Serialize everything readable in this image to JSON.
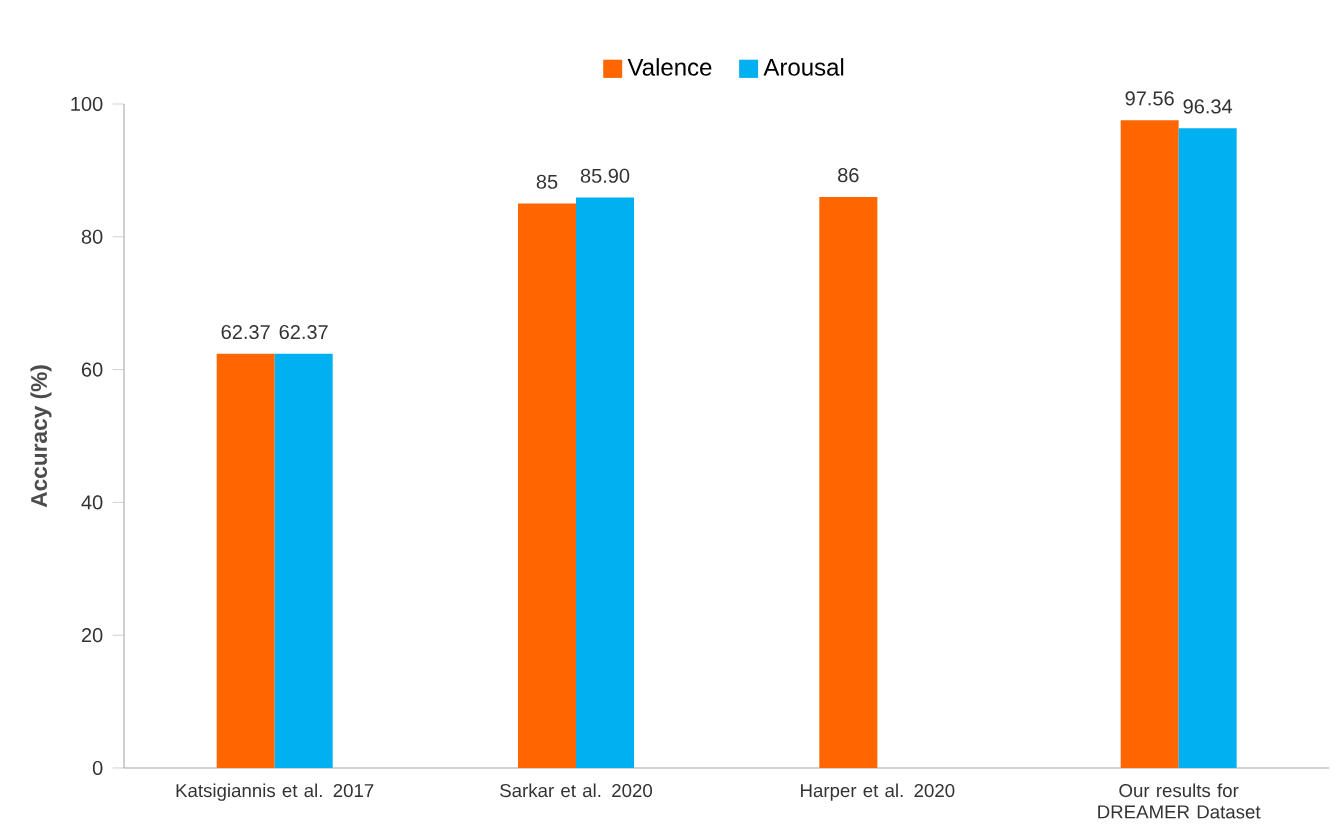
{
  "chart_data": {
    "type": "bar",
    "ylabel": "Accuracy (%)",
    "categories": [
      "Katsigiannis et al. 2017",
      "Sarkar et al. 2020",
      "Harper et al. 2020",
      "Our results for DREAMER Dataset"
    ],
    "series": [
      {
        "name": "Valence",
        "color": "#ff6600",
        "values": [
          62.37,
          85,
          86,
          97.56
        ],
        "value_labels": [
          "62.37",
          "85",
          "86",
          "97.56"
        ]
      },
      {
        "name": "Arousal",
        "color": "#00b0f0",
        "values": [
          62.37,
          85.9,
          null,
          96.34
        ],
        "value_labels": [
          "62.37",
          "85.90",
          null,
          "96.34"
        ]
      }
    ],
    "ylim": [
      0,
      100
    ],
    "yticks": [
      0,
      20,
      40,
      60,
      80,
      100
    ],
    "grid": false,
    "legend": "top"
  }
}
